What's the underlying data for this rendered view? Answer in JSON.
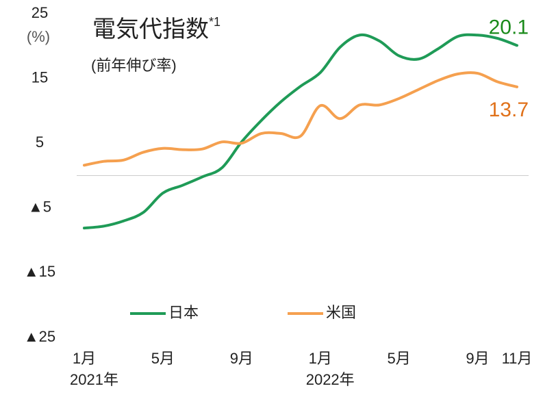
{
  "chart_data": {
    "type": "line",
    "title": "電気代指数",
    "title_note": "*1",
    "subtitle": "(前年伸び率)",
    "y_unit": "(%)",
    "categories": [
      "1月",
      null,
      null,
      null,
      "5月",
      null,
      null,
      null,
      "9月",
      null,
      null,
      null,
      "1月",
      null,
      null,
      null,
      "5月",
      null,
      null,
      null,
      "9月",
      null,
      "11月"
    ],
    "category_groups": [
      "2021年",
      null,
      null,
      null,
      null,
      null,
      null,
      null,
      null,
      null,
      null,
      null,
      "2022年",
      null,
      null,
      null,
      null,
      null,
      null,
      null,
      null,
      null,
      null
    ],
    "ylim": [
      -25,
      25
    ],
    "yticks": [
      25,
      15,
      5,
      {
        "value": -5,
        "label": "▲5"
      },
      {
        "value": -15,
        "label": "▲15"
      },
      {
        "value": -25,
        "label": "▲25"
      }
    ],
    "zero_line": true,
    "legend": "bottom",
    "series": [
      {
        "name": "日本",
        "color": "#1f9b57",
        "label_color": "#1a8a1a",
        "values": [
          -8.1,
          -7.8,
          -7.0,
          -5.7,
          -2.7,
          -1.5,
          -0.2,
          1.2,
          5.2,
          8.5,
          11.4,
          13.8,
          15.9,
          19.8,
          21.7,
          20.8,
          18.5,
          18.0,
          19.6,
          21.5,
          21.7,
          21.2,
          20.1
        ]
      },
      {
        "name": "米国",
        "color": "#f5a04f",
        "label_color": "#e0711a",
        "values": [
          1.6,
          2.2,
          2.4,
          3.6,
          4.2,
          4.0,
          4.1,
          5.2,
          5.0,
          6.5,
          6.5,
          6.1,
          10.8,
          8.8,
          10.9,
          10.9,
          11.9,
          13.3,
          14.7,
          15.7,
          15.8,
          14.5,
          13.7
        ]
      }
    ]
  }
}
